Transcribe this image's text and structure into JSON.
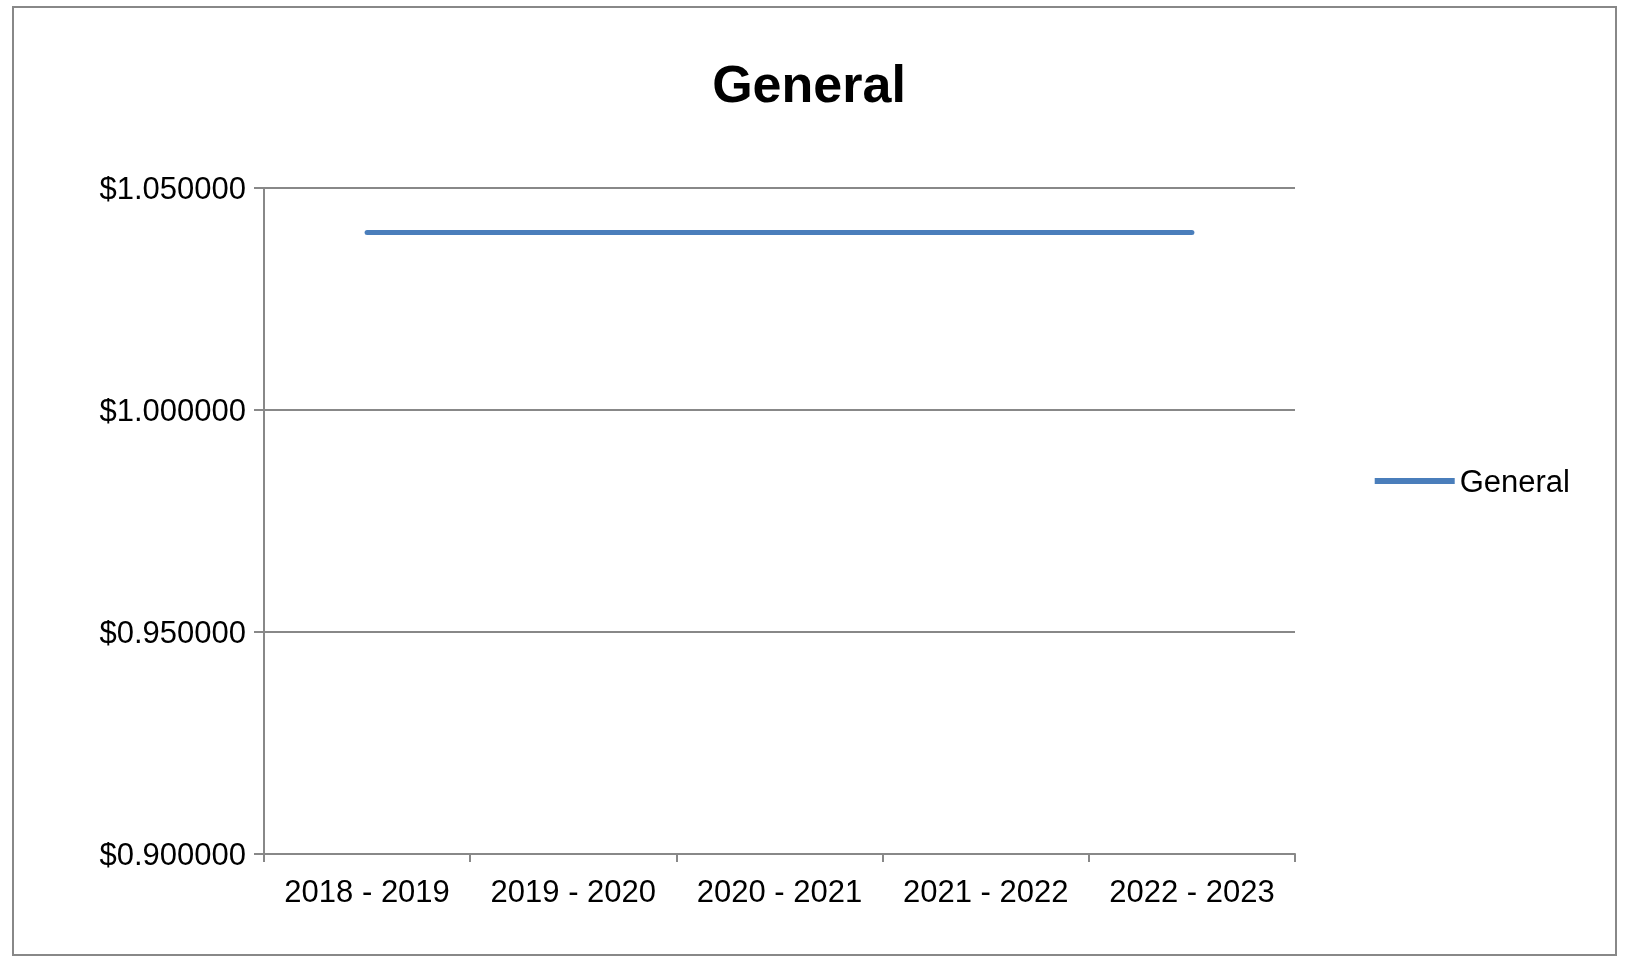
{
  "chart_data": {
    "type": "line",
    "title": "General",
    "categories": [
      "2018 - 2019",
      "2019 - 2020",
      "2020 - 2021",
      "2021 - 2022",
      "2022 - 2023"
    ],
    "series": [
      {
        "name": "General",
        "color": "#4a7ebb",
        "values": [
          1.04,
          1.04,
          1.04,
          1.04,
          1.04
        ]
      }
    ],
    "ylim": [
      0.9,
      1.05
    ],
    "yticks": [
      {
        "value": 0.9,
        "label": "$0.900000"
      },
      {
        "value": 0.95,
        "label": "$0.950000"
      },
      {
        "value": 1.0,
        "label": "$1.000000"
      },
      {
        "value": 1.05,
        "label": "$1.050000"
      }
    ],
    "grid": "y",
    "legend": "right",
    "marker": "none",
    "line_style": "solid"
  }
}
